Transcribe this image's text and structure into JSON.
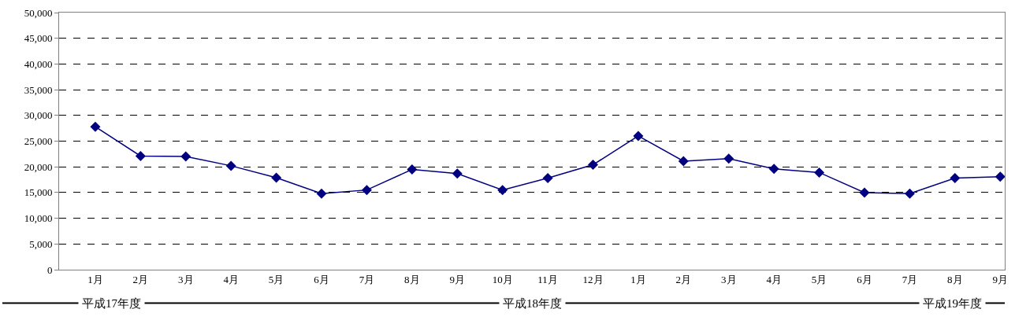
{
  "chart_data": {
    "type": "line",
    "categories": [
      "1月",
      "2月",
      "3月",
      "4月",
      "5月",
      "6月",
      "7月",
      "8月",
      "9月",
      "10月",
      "11月",
      "12月",
      "1月",
      "2月",
      "3月",
      "4月",
      "5月",
      "6月",
      "7月",
      "8月",
      "9月"
    ],
    "series": [
      {
        "color": "#000080",
        "values": [
          27800,
          22100,
          22000,
          20200,
          17900,
          14800,
          15500,
          19500,
          18700,
          15500,
          17800,
          20400,
          26000,
          21100,
          21600,
          19600,
          18900,
          15000,
          14800,
          17800,
          18100
        ]
      }
    ],
    "ylim": [
      0,
      50000
    ],
    "yticks": [
      0,
      {
        "value": 5000,
        "label": "5,000"
      },
      {
        "value": 10000,
        "label": "10,000"
      },
      {
        "value": 15000,
        "label": "15,000"
      },
      {
        "value": 20000,
        "label": "20,000"
      },
      {
        "value": 25000,
        "label": "25,000"
      },
      {
        "value": 30000,
        "label": "30,000"
      },
      {
        "value": 35000,
        "label": "35,000"
      },
      {
        "value": 40000,
        "label": "40,000"
      },
      {
        "value": 45000,
        "label": "45,000"
      },
      {
        "value": 50000,
        "label": "50,000"
      }
    ],
    "grid": "y",
    "marker": "diamond",
    "line_style": "solid",
    "annotations": [
      "平成17年度",
      "平成18年度",
      "平成19年度"
    ]
  }
}
